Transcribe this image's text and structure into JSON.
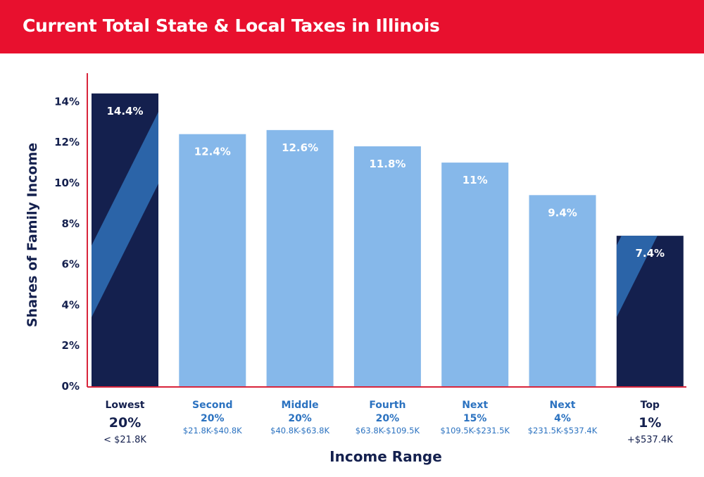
{
  "title": "Current Total State & Local Taxes in Illinois",
  "colors": {
    "title_bar": "#e8102e",
    "axis": "#d8243b",
    "dark_bar": "#14204e",
    "dark_stripe": "#2b64a8",
    "light_bar": "#86b8ea",
    "dark_label": "#14204e",
    "light_label": "#2b72c0"
  },
  "chart_data": {
    "type": "bar",
    "title": "Current Total State & Local Taxes in Illinois",
    "xlabel": "Income Range",
    "ylabel": "Shares of Family Income",
    "ylim": [
      0,
      15
    ],
    "yticks": [
      0,
      2,
      4,
      6,
      8,
      10,
      12,
      14
    ],
    "ytick_labels": [
      "0%",
      "2%",
      "4%",
      "6%",
      "8%",
      "10%",
      "12%",
      "14%"
    ],
    "grid": false,
    "categories": [
      {
        "line1": "Lowest",
        "line2": "20%",
        "line3": "< $21.8K",
        "emphasis": true
      },
      {
        "line1": "Second",
        "line2": "20%",
        "line3": "$21.8K-$40.8K",
        "emphasis": false
      },
      {
        "line1": "Middle",
        "line2": "20%",
        "line3": "$40.8K-$63.8K",
        "emphasis": false
      },
      {
        "line1": "Fourth",
        "line2": "20%",
        "line3": "$63.8K-$109.5K",
        "emphasis": false
      },
      {
        "line1": "Next",
        "line2": "15%",
        "line3": "$109.5K-$231.5K",
        "emphasis": false
      },
      {
        "line1": "Next",
        "line2": "4%",
        "line3": "$231.5K-$537.4K",
        "emphasis": false
      },
      {
        "line1": "Top",
        "line2": "1%",
        "line3": "+$537.4K",
        "emphasis": true
      }
    ],
    "values": [
      14.4,
      12.4,
      12.6,
      11.8,
      11,
      9.4,
      7.4
    ],
    "value_labels": [
      "14.4%",
      "12.4%",
      "12.6%",
      "11.8%",
      "11%",
      "9.4%",
      "7.4%"
    ]
  }
}
